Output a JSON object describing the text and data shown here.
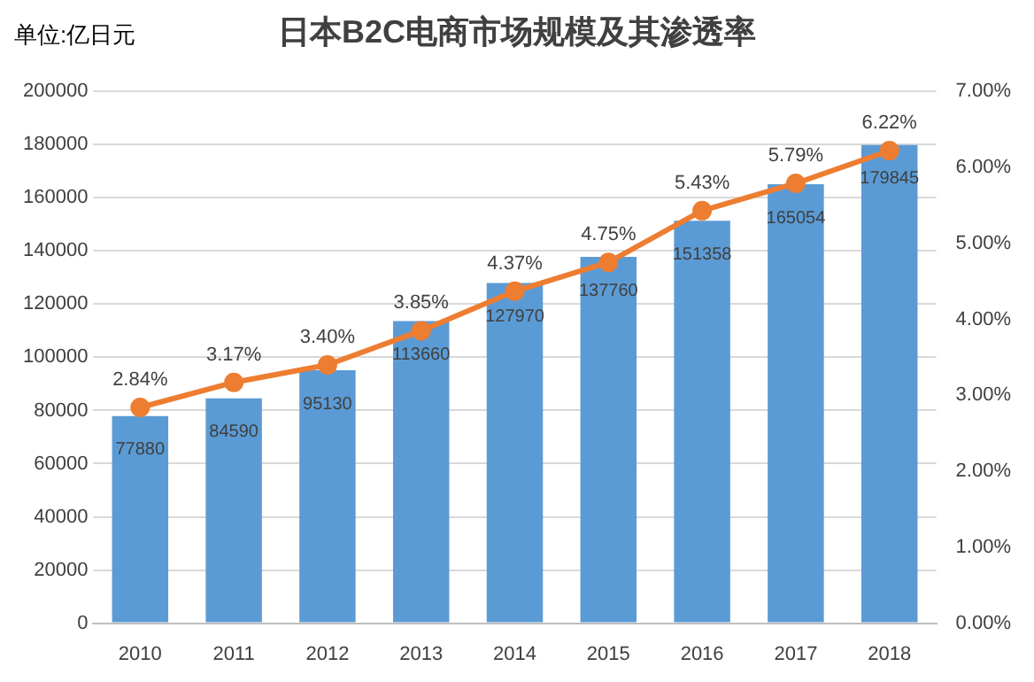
{
  "chart_data": {
    "type": "bar",
    "title": "日本B2C电商市场规模及其渗透率",
    "ylabel": "单位:亿日元",
    "categories": [
      "2010",
      "2011",
      "2012",
      "2013",
      "2014",
      "2015",
      "2016",
      "2017",
      "2018"
    ],
    "series": [
      {
        "color": "#5b9bd5",
        "values": [
          77880,
          84590,
          95130,
          113660,
          127970,
          137760,
          151358,
          165054,
          179845
        ],
        "value_labels": [
          "77880",
          "84590",
          "95130",
          "113660",
          "127970",
          "137760",
          "151358",
          "165054",
          "179845"
        ]
      },
      {
        "type": "line",
        "axis": "y2",
        "color": "#ed7d31",
        "marker": "circle",
        "values": [
          2.84,
          3.17,
          3.4,
          3.85,
          4.37,
          4.75,
          5.43,
          5.79,
          6.22
        ],
        "value_labels": [
          "2.84%",
          "3.17%",
          "3.40%",
          "3.85%",
          "4.37%",
          "4.75%",
          "5.43%",
          "5.79%",
          "6.22%"
        ]
      }
    ],
    "ylim": [
      0,
      200000
    ],
    "yticks": [
      0,
      20000,
      40000,
      60000,
      80000,
      100000,
      120000,
      140000,
      160000,
      180000,
      200000
    ],
    "y2lim": [
      0,
      7
    ],
    "y2ticks": [
      {
        "value": 0,
        "label": "0.00%"
      },
      {
        "value": 1,
        "label": "1.00%"
      },
      {
        "value": 2,
        "label": "2.00%"
      },
      {
        "value": 3,
        "label": "3.00%"
      },
      {
        "value": 4,
        "label": "4.00%"
      },
      {
        "value": 5,
        "label": "5.00%"
      },
      {
        "value": 6,
        "label": "6.00%"
      },
      {
        "value": 7,
        "label": "7.00%"
      }
    ],
    "grid": "y",
    "legend": false
  }
}
